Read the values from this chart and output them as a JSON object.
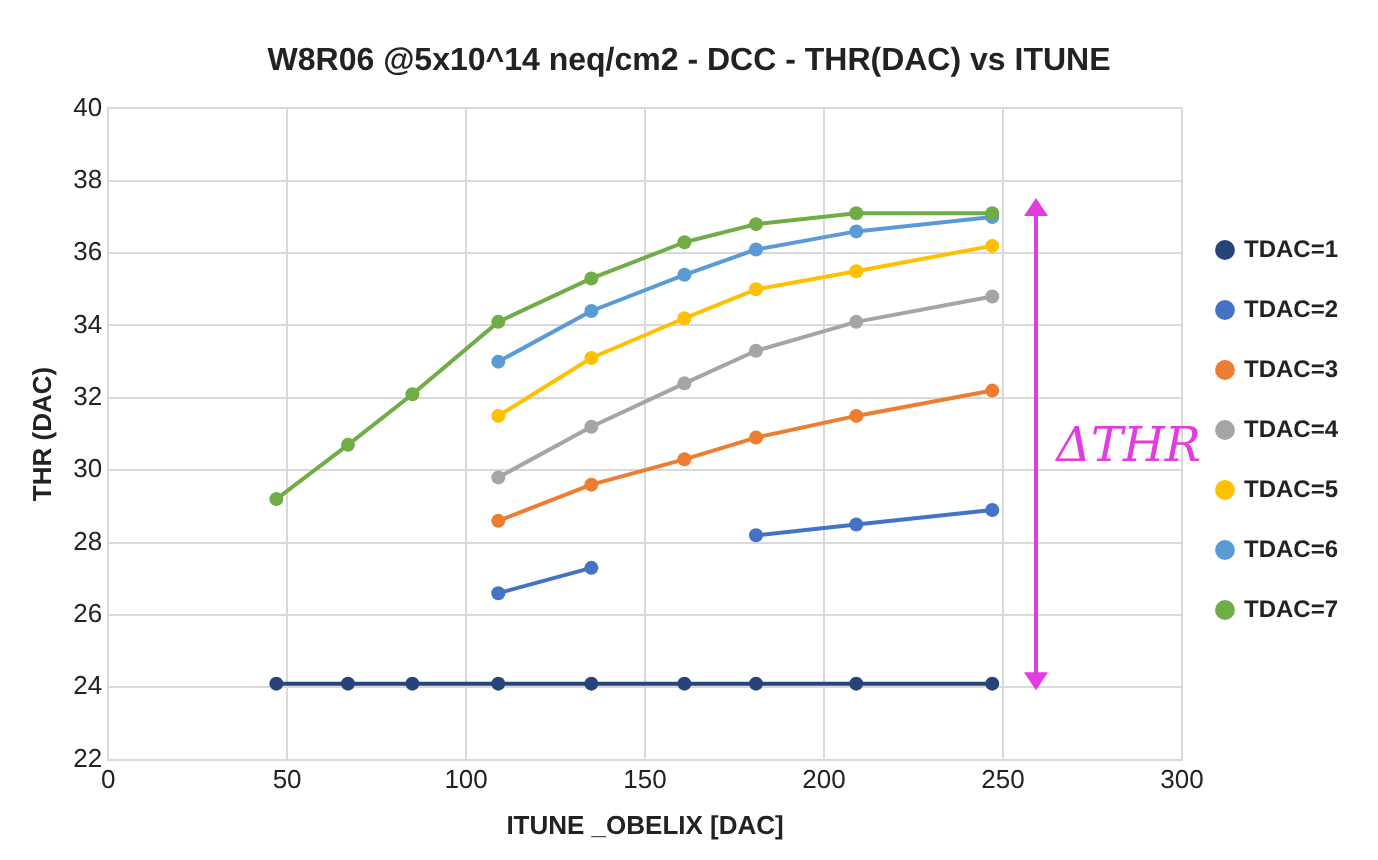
{
  "chart_data": {
    "type": "line",
    "title": "W8R06 @5x10^14 neq/cm2 - DCC - THR(DAC) vs ITUNE",
    "xlabel": "ITUNE _OBELIX [DAC]",
    "ylabel": "THR (DAC)",
    "xlim": [
      0,
      300
    ],
    "xticks": [
      0,
      50,
      100,
      150,
      200,
      250,
      300
    ],
    "ylim": [
      22,
      40
    ],
    "yticks": [
      22,
      24,
      26,
      28,
      30,
      32,
      34,
      36,
      38,
      40
    ],
    "grid": true,
    "legend": "right",
    "marker": "circle",
    "line_style": "solid",
    "series": [
      {
        "name": "TDAC=1",
        "color": "#264478",
        "x": [
          47,
          67,
          85,
          109,
          135,
          161,
          181,
          209,
          247
        ],
        "values": [
          24.1,
          24.1,
          24.1,
          24.1,
          24.1,
          24.1,
          24.1,
          24.1,
          24.1
        ]
      },
      {
        "name": "TDAC=2",
        "color": "#4472c4",
        "x": [
          109,
          135,
          161,
          181,
          209,
          247
        ],
        "values": [
          26.6,
          27.3,
          null,
          28.2,
          28.5,
          28.9
        ]
      },
      {
        "name": "TDAC=3",
        "color": "#ed7d31",
        "x": [
          109,
          135,
          161,
          181,
          209,
          247
        ],
        "values": [
          28.6,
          29.6,
          30.3,
          30.9,
          31.5,
          32.2
        ]
      },
      {
        "name": "TDAC=4",
        "color": "#a5a5a5",
        "x": [
          109,
          135,
          161,
          181,
          209,
          247
        ],
        "values": [
          29.8,
          31.2,
          32.4,
          33.3,
          34.1,
          34.8
        ]
      },
      {
        "name": "TDAC=5",
        "color": "#ffc000",
        "x": [
          109,
          135,
          161,
          181,
          209,
          247
        ],
        "values": [
          31.5,
          33.1,
          34.2,
          35.0,
          35.5,
          36.2
        ]
      },
      {
        "name": "TDAC=6",
        "color": "#5b9bd5",
        "x": [
          109,
          135,
          161,
          181,
          209,
          247
        ],
        "values": [
          33.0,
          34.4,
          35.4,
          36.1,
          36.6,
          37.0
        ]
      },
      {
        "name": "TDAC=7",
        "color": "#70ad47",
        "x": [
          47,
          67,
          85,
          109,
          135,
          161,
          181,
          209,
          247
        ],
        "values": [
          29.2,
          30.7,
          32.1,
          34.1,
          35.3,
          36.3,
          36.8,
          37.1,
          37.1
        ]
      }
    ],
    "annotations": [
      "ΔTHR"
    ]
  }
}
